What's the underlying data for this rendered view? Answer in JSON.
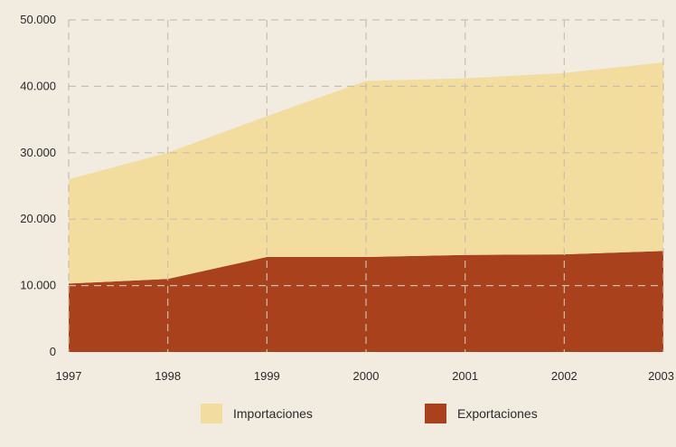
{
  "chart_data": {
    "type": "area",
    "stacked": true,
    "x": [
      "1997",
      "1998",
      "1999",
      "2000",
      "2001",
      "2002",
      "2003"
    ],
    "series": [
      {
        "name": "Exportaciones",
        "color": "#a8411c",
        "values": [
          10300,
          11000,
          14300,
          14300,
          14600,
          14700,
          15200
        ]
      },
      {
        "name": "Importaciones",
        "color": "#f2dc9e",
        "values": [
          15700,
          19000,
          21200,
          26500,
          26600,
          27300,
          28400
        ]
      }
    ],
    "ylim": [
      0,
      50000
    ],
    "yticks": [
      "0",
      "10.000",
      "20.000",
      "30.000",
      "40.000",
      "50.000"
    ],
    "ytick_values": [
      0,
      10000,
      20000,
      30000,
      40000,
      50000
    ],
    "grid": true,
    "legend": {
      "placement": "bottom",
      "order": [
        "Importaciones",
        "Exportaciones"
      ]
    },
    "title": "",
    "xlabel": "",
    "ylabel": ""
  }
}
